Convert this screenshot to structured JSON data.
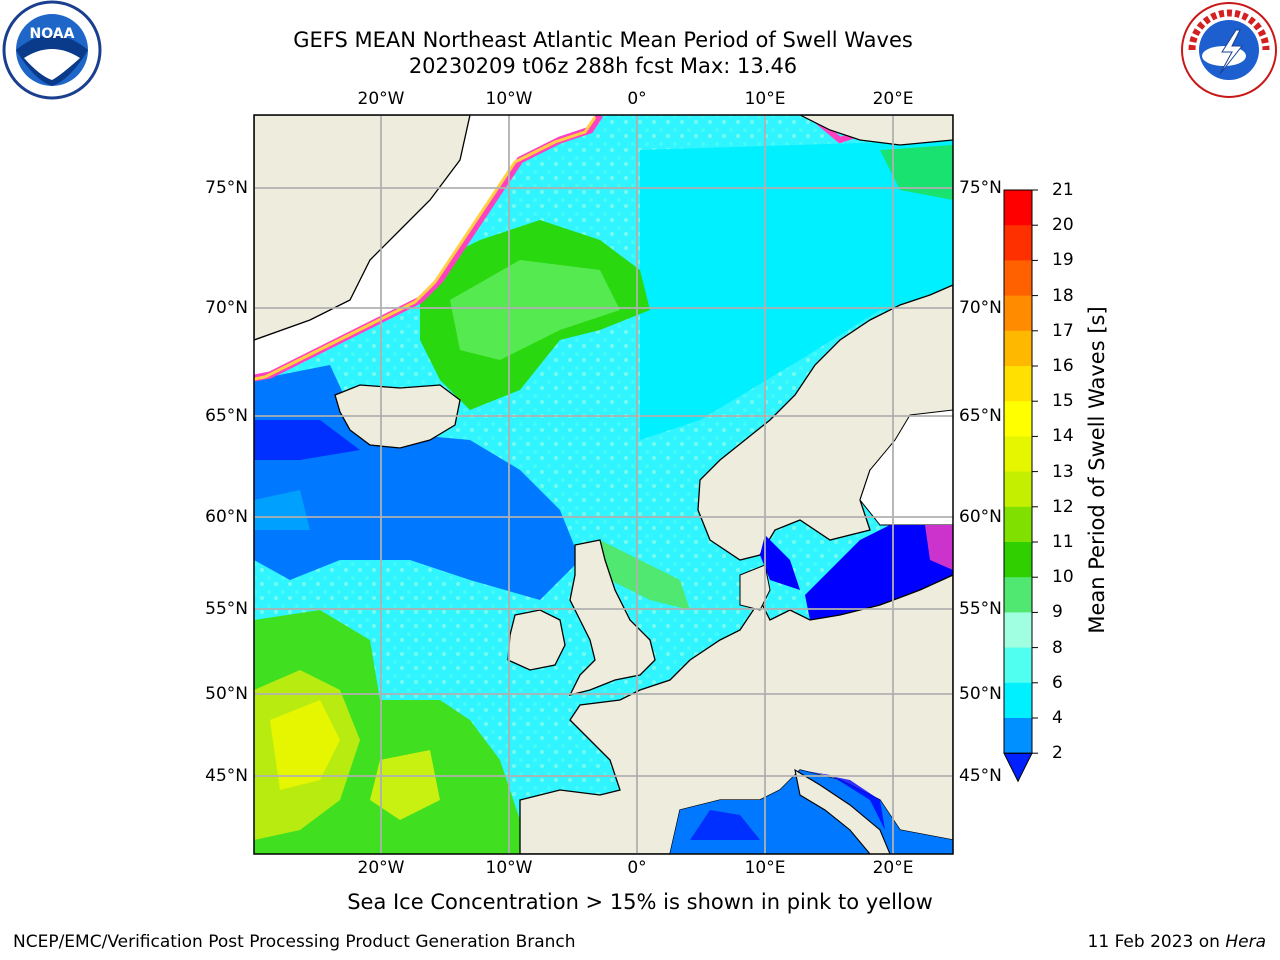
{
  "title": {
    "line1": "GEFS MEAN Northeast Atlantic Mean Period of Swell Waves",
    "line2": "20230209 t06z 288h fcst   Max: 13.46"
  },
  "logos": {
    "left": "noaa-logo",
    "right": "nws-logo"
  },
  "map": {
    "lon_ticks": [
      "20°W",
      "10°W",
      "0°",
      "10°E",
      "20°E"
    ],
    "lat_ticks": [
      "75°N",
      "70°N",
      "65°N",
      "60°N",
      "55°N",
      "50°N",
      "45°N"
    ]
  },
  "colorbar": {
    "title": "Mean Period of Swell Waves [s]",
    "levels": [
      "21",
      "20",
      "19",
      "18",
      "17",
      "16",
      "15",
      "14",
      "13",
      "12",
      "11",
      "10",
      "9",
      "8",
      "6",
      "4",
      "2"
    ],
    "colors": [
      "#ff0000",
      "#ff3000",
      "#ff6000",
      "#ff8c00",
      "#ffb800",
      "#ffe000",
      "#ffff00",
      "#e6f500",
      "#c4f000",
      "#80e000",
      "#30d000",
      "#50e870",
      "#a0ffe0",
      "#50fff0",
      "#00f0ff",
      "#0090ff",
      "#0020ff"
    ]
  },
  "caption": "Sea Ice Concentration > 15% is shown in pink to yellow",
  "footer": {
    "left": "NCEP/EMC/Verification Post Processing Product Generation Branch",
    "right_date": "11 Feb 2023 on ",
    "right_host": "Hera"
  }
}
